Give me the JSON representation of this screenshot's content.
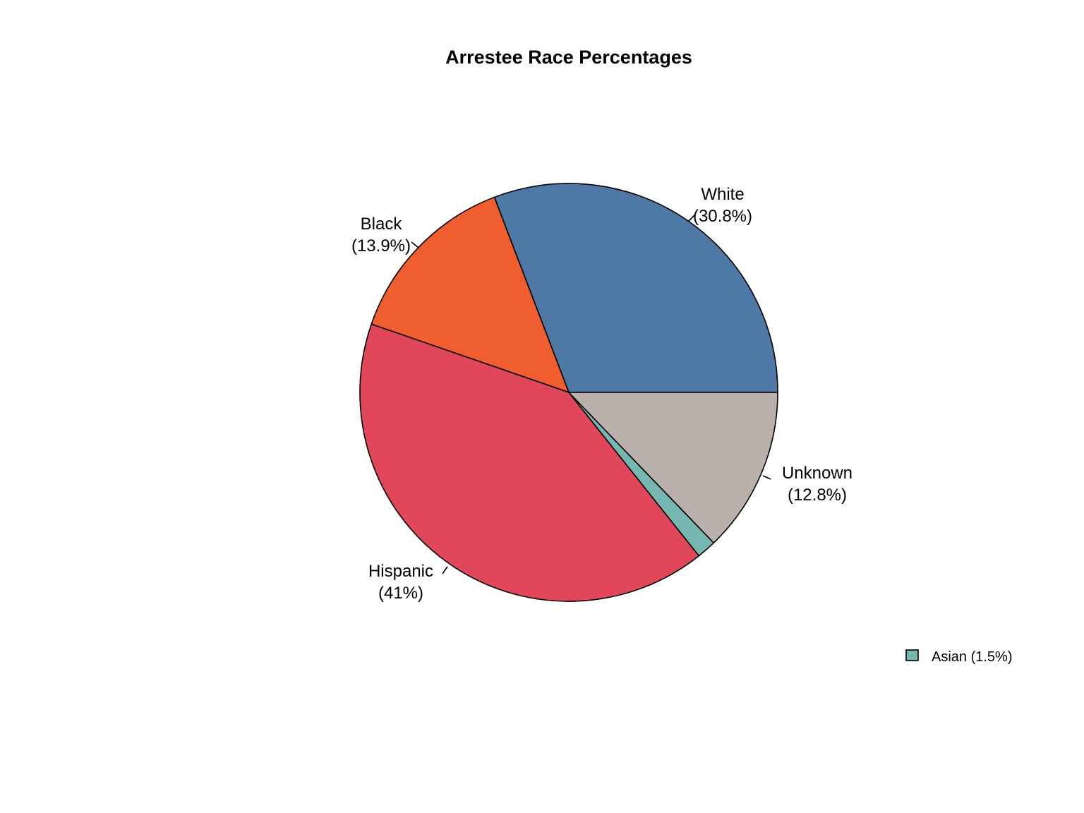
{
  "chart_data": {
    "type": "pie",
    "title": "Arrestee Race Percentages",
    "slices": [
      {
        "label": "White",
        "percent_label": "(30.8%)",
        "value": 30.8,
        "color": "#4E79A7"
      },
      {
        "label": "Black",
        "percent_label": "(13.9%)",
        "value": 13.9,
        "color": "#F05D2E"
      },
      {
        "label": "Hispanic",
        "percent_label": "(41%)",
        "value": 41.0,
        "color": "#E1475A"
      },
      {
        "label": "Asian",
        "percent_label": "(1.5%)",
        "value": 1.5,
        "color": "#76B7B2"
      },
      {
        "label": "Unknown",
        "percent_label": "(12.8%)",
        "value": 12.8,
        "color": "#BAB0AC"
      }
    ],
    "start_angle_deg": 0,
    "direction": "counterclockwise",
    "legend": {
      "placement": "bottom-right",
      "entries": [
        {
          "text": "Asian (1.5%)",
          "color": "#76B7B2"
        }
      ]
    }
  }
}
